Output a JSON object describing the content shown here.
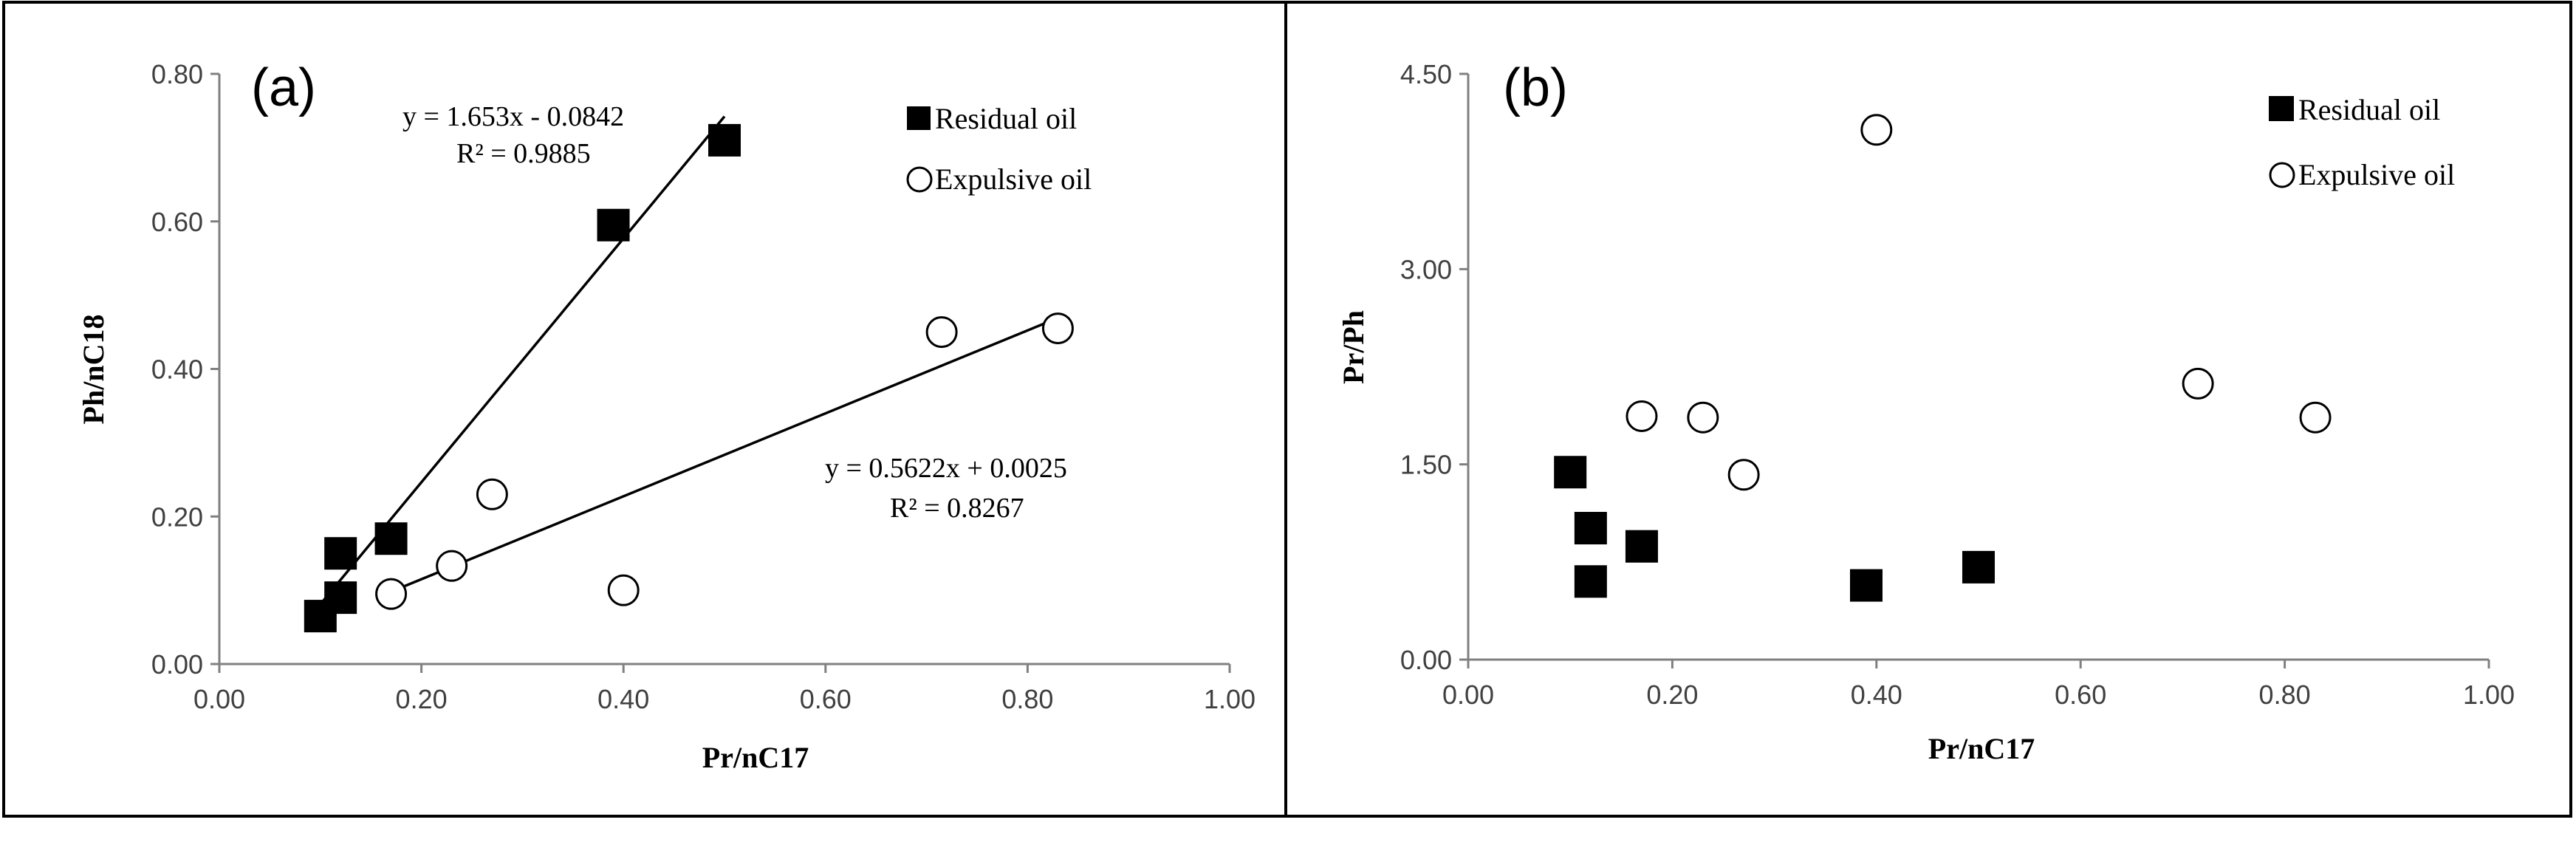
{
  "chart_data": [
    {
      "type": "scatter",
      "panel_label": "(a)",
      "xlabel": "Pr/nC17",
      "ylabel": "Ph/nC18",
      "xlim": [
        0,
        1
      ],
      "ylim": [
        0,
        0.8
      ],
      "xticks": [
        "0.00",
        "0.20",
        "0.40",
        "0.60",
        "0.80",
        "1.00"
      ],
      "yticks": [
        "0.00",
        "0.20",
        "0.40",
        "0.60",
        "0.80"
      ],
      "grid": false,
      "legend_position": "top-right",
      "series": [
        {
          "name": "Residual oil",
          "marker": "filled-square",
          "x": [
            0.1,
            0.12,
            0.12,
            0.17,
            0.39,
            0.5
          ],
          "y": [
            0.065,
            0.09,
            0.15,
            0.17,
            0.595,
            0.71
          ]
        },
        {
          "name": "Expulsive oil",
          "marker": "open-circle",
          "x": [
            0.17,
            0.23,
            0.27,
            0.4,
            0.715,
            0.83
          ],
          "y": [
            0.095,
            0.133,
            0.23,
            0.1,
            0.45,
            0.455
          ]
        }
      ],
      "trendlines": [
        {
          "series": "Residual oil",
          "slope": 1.653,
          "intercept": -0.0842,
          "x_range": [
            0.1,
            0.5
          ],
          "equation": "y = 1.653x - 0.0842",
          "r2": "R² = 0.9885"
        },
        {
          "series": "Expulsive oil",
          "slope": 0.5622,
          "intercept": 0.0025,
          "x_range": [
            0.17,
            0.825
          ],
          "equation": "y = 0.5622x + 0.0025",
          "r2": "R² = 0.8267"
        }
      ]
    },
    {
      "type": "scatter",
      "panel_label": "(b)",
      "xlabel": "Pr/nC17",
      "ylabel": "Pr/Ph",
      "xlim": [
        0,
        1
      ],
      "ylim": [
        0,
        4.5
      ],
      "xticks": [
        "0.00",
        "0.20",
        "0.40",
        "0.60",
        "0.80",
        "1.00"
      ],
      "yticks": [
        "0.00",
        "1.50",
        "3.00",
        "4.50"
      ],
      "grid": false,
      "legend_position": "top-right",
      "series": [
        {
          "name": "Residual oil",
          "marker": "filled-square",
          "x": [
            0.1,
            0.12,
            0.12,
            0.17,
            0.39,
            0.5
          ],
          "y": [
            1.44,
            1.01,
            0.6,
            0.87,
            0.57,
            0.71
          ]
        },
        {
          "name": "Expulsive oil",
          "marker": "open-circle",
          "x": [
            0.17,
            0.23,
            0.27,
            0.4,
            0.715,
            0.83
          ],
          "y": [
            1.87,
            1.86,
            1.42,
            4.07,
            2.12,
            1.86
          ]
        }
      ]
    }
  ]
}
